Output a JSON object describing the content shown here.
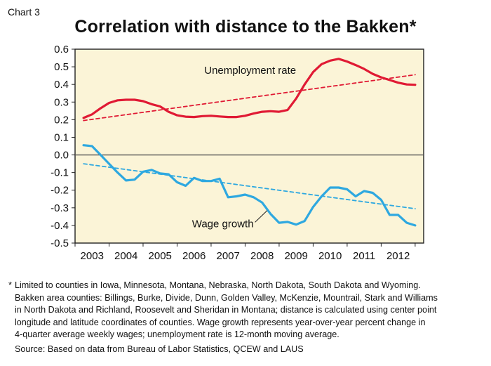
{
  "header": {
    "chart_label": "Chart 3",
    "title": "Correlation with distance to the Bakken*"
  },
  "chart_data": {
    "type": "line",
    "title": "Correlation with distance to the Bakken*",
    "xlabel": "",
    "ylabel": "",
    "ylim": [
      -0.5,
      0.6
    ],
    "xlim": [
      2002.5,
      2012.75
    ],
    "grid": false,
    "legend": "none (series labelled directly on chart)",
    "yticks": [
      "0.6",
      "0.5",
      "0.4",
      "0.3",
      "0.2",
      "0.1",
      "0.0",
      "-0.1",
      "-0.2",
      "-0.3",
      "-0.4",
      "-0.5"
    ],
    "xticks": [
      "2003",
      "2004",
      "2005",
      "2006",
      "2007",
      "2008",
      "2009",
      "2010",
      "2011",
      "2012"
    ],
    "series": [
      {
        "name": "Unemployment rate",
        "color": "#e01a34",
        "style": "solid",
        "x": [
          2002.75,
          2003.0,
          2003.25,
          2003.5,
          2003.75,
          2004.0,
          2004.25,
          2004.5,
          2004.75,
          2005.0,
          2005.25,
          2005.5,
          2005.75,
          2006.0,
          2006.25,
          2006.5,
          2006.75,
          2007.0,
          2007.25,
          2007.5,
          2007.75,
          2008.0,
          2008.25,
          2008.5,
          2008.75,
          2009.0,
          2009.25,
          2009.5,
          2009.75,
          2010.0,
          2010.25,
          2010.5,
          2010.75,
          2011.0,
          2011.25,
          2011.5,
          2011.75,
          2012.0,
          2012.25,
          2012.5
        ],
        "y": [
          0.21,
          0.23,
          0.265,
          0.295,
          0.31,
          0.313,
          0.313,
          0.305,
          0.288,
          0.275,
          0.245,
          0.225,
          0.217,
          0.215,
          0.22,
          0.222,
          0.218,
          0.215,
          0.215,
          0.222,
          0.235,
          0.245,
          0.248,
          0.245,
          0.255,
          0.32,
          0.4,
          0.47,
          0.515,
          0.535,
          0.545,
          0.53,
          0.51,
          0.488,
          0.46,
          0.44,
          0.425,
          0.41,
          0.4,
          0.398
        ]
      },
      {
        "name": "Unemployment rate trend",
        "color": "#e01a34",
        "style": "dashed",
        "x": [
          2002.75,
          2012.5
        ],
        "y": [
          0.195,
          0.455
        ]
      },
      {
        "name": "Wage growth",
        "color": "#2ea8e0",
        "style": "solid",
        "x": [
          2002.75,
          2003.0,
          2003.25,
          2003.5,
          2003.75,
          2004.0,
          2004.25,
          2004.5,
          2004.75,
          2005.0,
          2005.25,
          2005.5,
          2005.75,
          2006.0,
          2006.25,
          2006.5,
          2006.75,
          2007.0,
          2007.25,
          2007.5,
          2007.75,
          2008.0,
          2008.25,
          2008.5,
          2008.75,
          2009.0,
          2009.25,
          2009.5,
          2009.75,
          2010.0,
          2010.25,
          2010.5,
          2010.75,
          2011.0,
          2011.25,
          2011.5,
          2011.75,
          2012.0,
          2012.25,
          2012.5
        ],
        "y": [
          0.055,
          0.05,
          0.0,
          -0.05,
          -0.1,
          -0.145,
          -0.14,
          -0.095,
          -0.085,
          -0.105,
          -0.11,
          -0.155,
          -0.175,
          -0.13,
          -0.148,
          -0.148,
          -0.135,
          -0.24,
          -0.235,
          -0.225,
          -0.24,
          -0.27,
          -0.335,
          -0.385,
          -0.38,
          -0.395,
          -0.375,
          -0.295,
          -0.235,
          -0.185,
          -0.185,
          -0.195,
          -0.235,
          -0.205,
          -0.215,
          -0.255,
          -0.34,
          -0.34,
          -0.385,
          -0.4
        ]
      },
      {
        "name": "Wage growth trend",
        "color": "#2ea8e0",
        "style": "dashed",
        "x": [
          2002.75,
          2012.5
        ],
        "y": [
          -0.05,
          -0.305
        ]
      }
    ],
    "annotations": [
      {
        "text": "Unemployment rate",
        "x": 2009.0,
        "y": 0.48
      },
      {
        "text": "Wage growth",
        "x": 2007.75,
        "y": -0.39
      }
    ]
  },
  "footnotes": {
    "star": "*",
    "lines": [
      "Limited to counties in Iowa, Minnesota, Montana, Nebraska, North Dakota, South Dakota and Wyoming.",
      "Bakken area counties: Billings, Burke, Divide, Dunn, Golden Valley, McKenzie, Mountrail, Stark and Williams",
      "in North Dakota and Richland, Roosevelt and Sheridan in Montana; distance is calculated using center point",
      "longitude and latitude coordinates of counties. Wage growth represents  year-over-year percent change in",
      "4-quarter average weekly wages; unemployment rate is 12-month moving average."
    ],
    "source": "Source: Based on data from Bureau of Labor Statistics, QCEW and LAUS"
  },
  "colors": {
    "plot_background": "#fbf4d7",
    "axis": "#222222",
    "zero_line": "#555555"
  }
}
